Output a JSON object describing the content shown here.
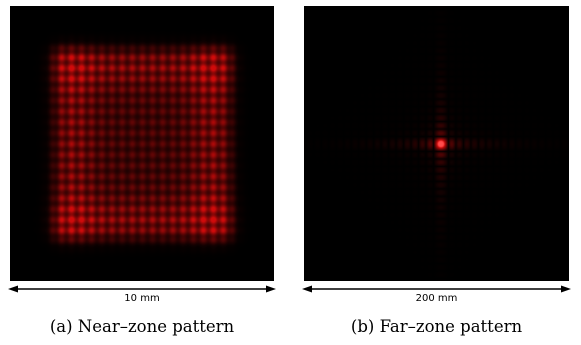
{
  "panels": [
    {
      "id": "near",
      "scale_label": "10 mm",
      "caption": "(a) Near–zone pattern",
      "color": "#ff1a1a"
    },
    {
      "id": "far",
      "scale_label": "200 mm",
      "caption": "(b) Far–zone pattern",
      "color": "#ff1a1a"
    }
  ]
}
